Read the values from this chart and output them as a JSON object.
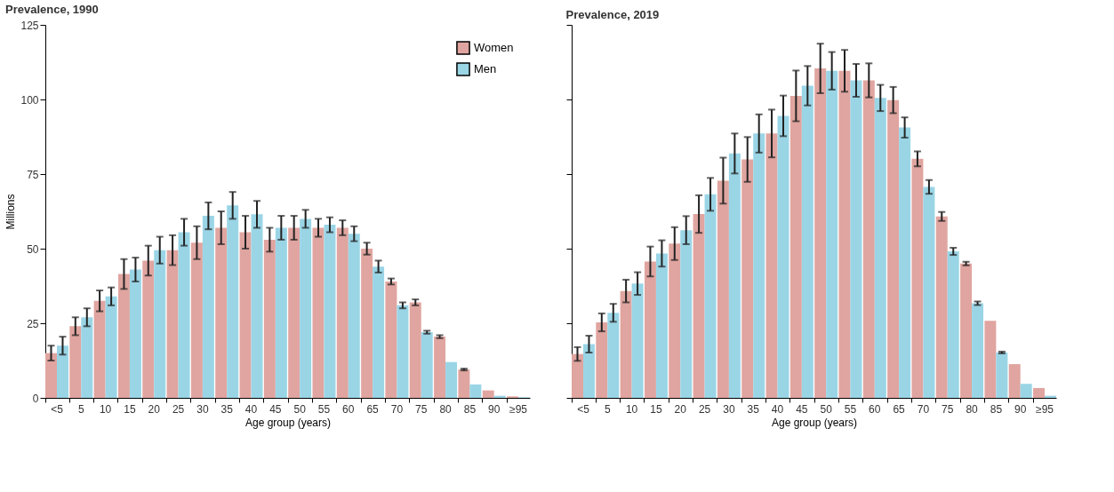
{
  "chart_data": [
    {
      "type": "bar",
      "title": "Prevalence, 1990",
      "xlabel": "Age group (years)",
      "ylabel": "Millions",
      "categories": [
        "<5",
        "5",
        "10",
        "15",
        "20",
        "25",
        "30",
        "35",
        "40",
        "45",
        "50",
        "55",
        "60",
        "65",
        "70",
        "75",
        "80",
        "85",
        "90",
        "≥95"
      ],
      "series": [
        {
          "name": "Women",
          "color": "#e0a5a0",
          "values": [
            15,
            24,
            32.5,
            41.5,
            46,
            49.5,
            52,
            57,
            55.5,
            53,
            57,
            57,
            57,
            50,
            39,
            32,
            20.5,
            9.5,
            2.5,
            0.5
          ],
          "errors": [
            2.5,
            3,
            3.5,
            5,
            5,
            5,
            5.5,
            5.5,
            5.5,
            4,
            4,
            3,
            2.5,
            2,
            1,
            1,
            0.5,
            0.3,
            null,
            null
          ]
        },
        {
          "name": "Men",
          "color": "#9ad5e6",
          "values": [
            17.5,
            27,
            34,
            43,
            49.5,
            55.5,
            61,
            64.5,
            61.5,
            57,
            60,
            58,
            55,
            44,
            31,
            22,
            12,
            4.5,
            0.7,
            0.2
          ],
          "errors": [
            3,
            3,
            3,
            4,
            4.5,
            4.5,
            4.5,
            4.5,
            4.5,
            4,
            3,
            2.5,
            2.5,
            2,
            1,
            0.5,
            null,
            null,
            null,
            null
          ]
        }
      ],
      "ylim": [
        0,
        125
      ],
      "yticks": [
        0,
        25,
        50,
        75,
        100,
        125
      ],
      "grid": false,
      "legend": "top right"
    },
    {
      "type": "bar",
      "title": "Prevalence, 2019",
      "xlabel": "Age group (years)",
      "categories": [
        "<5",
        "5",
        "10",
        "15",
        "20",
        "25",
        "30",
        "35",
        "40",
        "45",
        "50",
        "55",
        "60",
        "65",
        "70",
        "75",
        "80",
        "85",
        "90",
        "≥95"
      ],
      "series": [
        {
          "name": "Women",
          "color": "#e0a5a0",
          "values": [
            14.7,
            25.3,
            35.8,
            45.7,
            51.7,
            61.6,
            72.8,
            79.9,
            88.6,
            101.2,
            110.4,
            109.6,
            106.4,
            99.8,
            80.1,
            60.8,
            45,
            25.8,
            11.3,
            3.3
          ],
          "errors": [
            2.3,
            3,
            3.8,
            5,
            5.5,
            6.3,
            7.7,
            7.5,
            8,
            8.5,
            8.3,
            7,
            5.7,
            4.4,
            2.5,
            1.5,
            0.6,
            null,
            null,
            null
          ]
        },
        {
          "name": "Men",
          "color": "#9ad5e6",
          "values": [
            18,
            28.5,
            38.3,
            48.4,
            56.2,
            68.2,
            81.9,
            88.6,
            94.5,
            104.6,
            109.6,
            106.4,
            100.5,
            90.6,
            70.7,
            49.1,
            31.7,
            15.2,
            4.7,
            0.7
          ],
          "errors": [
            2.8,
            3,
            3.8,
            4.4,
            4.7,
            5.5,
            6.7,
            6.4,
            6.8,
            6.6,
            6.3,
            5.5,
            4.4,
            3.4,
            2.3,
            1.2,
            0.6,
            0.3,
            null,
            null
          ]
        }
      ],
      "ylim": [
        0,
        125
      ],
      "yticks": [
        0,
        25,
        50,
        75,
        100,
        125
      ],
      "grid": false,
      "legend": false,
      "tick_labels": "x"
    }
  ]
}
